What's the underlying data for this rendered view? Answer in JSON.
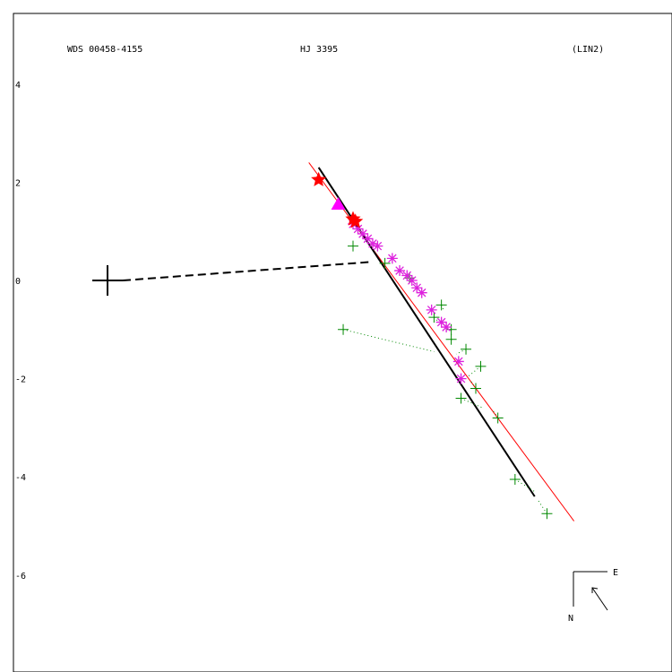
{
  "header": {
    "left": "WDS 00458-4155",
    "center": "HJ 3395",
    "right": "(LIN2)"
  },
  "compass": {
    "east": "E",
    "north": "N"
  },
  "colors": {
    "frame": "#000000",
    "primary_marker": "#000000",
    "orbit_fit": "#000000",
    "linear_fit": "#ff0000",
    "micrometric": "#008800",
    "speckle": "#dd22dd",
    "first_obs": "#ff0000",
    "last_obs": "#ff00ff"
  },
  "chart_data": {
    "type": "scatter",
    "title": "",
    "xlabel": "",
    "ylabel": "",
    "ylim": [
      -7.6,
      5.2
    ],
    "y_ticks": [
      4,
      2,
      0,
      -2,
      -4,
      -6
    ],
    "primary": [
      0,
      0
    ],
    "primary_line_end": [
      5.4,
      0.38
    ],
    "linear_fit": [
      [
        4.1,
        2.4
      ],
      [
        9.5,
        -4.9
      ]
    ],
    "orbit_path": [
      [
        4.3,
        2.3
      ],
      [
        8.7,
        -4.4
      ]
    ],
    "first_obs": [
      [
        4.3,
        2.05
      ],
      [
        5.0,
        1.25
      ],
      [
        5.05,
        1.2
      ]
    ],
    "last_obs": [
      [
        4.7,
        1.55
      ]
    ],
    "speckle_points": [
      [
        5.0,
        1.15
      ],
      [
        5.1,
        1.05
      ],
      [
        5.2,
        0.95
      ],
      [
        5.3,
        0.85
      ],
      [
        5.4,
        0.75
      ],
      [
        5.5,
        0.7
      ],
      [
        5.8,
        0.45
      ],
      [
        5.95,
        0.2
      ],
      [
        6.1,
        0.1
      ],
      [
        6.2,
        0.0
      ],
      [
        6.3,
        -0.15
      ],
      [
        6.4,
        -0.25
      ],
      [
        6.6,
        -0.6
      ],
      [
        6.8,
        -0.85
      ],
      [
        6.9,
        -0.95
      ],
      [
        7.15,
        -1.65
      ],
      [
        7.2,
        -2.0
      ]
    ],
    "micrometric_points": [
      [
        5.0,
        0.7
      ],
      [
        5.65,
        0.35
      ],
      [
        6.15,
        0.05
      ],
      [
        6.8,
        -0.5
      ],
      [
        6.65,
        -0.75
      ],
      [
        7.0,
        -1.0
      ],
      [
        7.0,
        -1.2
      ],
      [
        7.3,
        -1.4
      ],
      [
        7.2,
        -2.4
      ],
      [
        7.5,
        -2.2
      ],
      [
        7.6,
        -1.75
      ],
      [
        7.95,
        -2.8
      ],
      [
        4.8,
        -1.0
      ],
      [
        8.3,
        -4.05
      ],
      [
        8.95,
        -4.75
      ]
    ],
    "residual_lines": [
      [
        [
          6.8,
          -0.5
        ],
        [
          6.85,
          -0.62
        ]
      ],
      [
        [
          6.65,
          -0.75
        ],
        [
          6.75,
          -0.85
        ]
      ],
      [
        [
          7.0,
          -1.0
        ],
        [
          6.95,
          -1.05
        ]
      ],
      [
        [
          7.0,
          -1.2
        ],
        [
          7.05,
          -1.2
        ]
      ],
      [
        [
          7.3,
          -1.4
        ],
        [
          7.1,
          -1.5
        ]
      ],
      [
        [
          7.2,
          -2.4
        ],
        [
          7.65,
          -2.6
        ]
      ],
      [
        [
          7.5,
          -2.2
        ],
        [
          7.4,
          -2.05
        ]
      ],
      [
        [
          7.6,
          -1.75
        ],
        [
          7.35,
          -1.95
        ]
      ],
      [
        [
          7.95,
          -2.8
        ],
        [
          7.85,
          -2.65
        ]
      ],
      [
        [
          4.8,
          -1.0
        ],
        [
          6.65,
          -1.45
        ]
      ],
      [
        [
          8.3,
          -4.05
        ],
        [
          8.7,
          -4.3
        ]
      ],
      [
        [
          8.95,
          -4.75
        ],
        [
          8.75,
          -4.45
        ]
      ]
    ]
  }
}
